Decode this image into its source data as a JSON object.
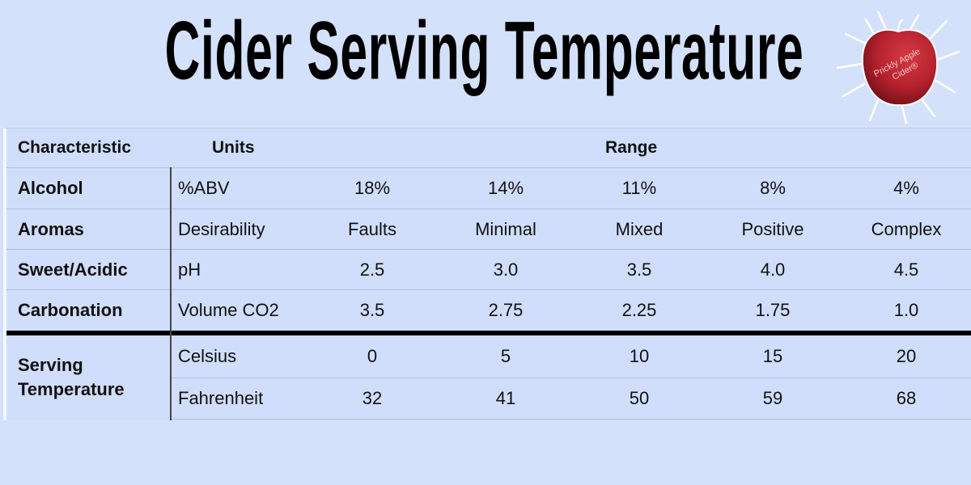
{
  "title": "Cider Serving Temperature",
  "logo": {
    "text_line1": "Prickly Apple",
    "text_line2": "Cider®",
    "color": "#b3202c"
  },
  "table": {
    "headers": {
      "characteristic": "Characteristic",
      "units": "Units",
      "range": "Range"
    },
    "rows": [
      {
        "characteristic": "Alcohol",
        "units": "%ABV",
        "values": [
          "18%",
          "14%",
          "11%",
          "8%",
          "4%"
        ]
      },
      {
        "characteristic": "Aromas",
        "units": "Desirability",
        "values": [
          "Faults",
          "Minimal",
          "Mixed",
          "Positive",
          "Complex"
        ]
      },
      {
        "characteristic": "Sweet/Acidic",
        "units": "pH",
        "values": [
          "2.5",
          "3.0",
          "3.5",
          "4.0",
          "4.5"
        ]
      },
      {
        "characteristic": "Carbonation",
        "units": "Volume CO2",
        "values": [
          "3.5",
          "2.75",
          "2.25",
          "1.75",
          "1.0"
        ]
      }
    ],
    "serving": {
      "label_line1": "Serving",
      "label_line2": "Temperature",
      "rows": [
        {
          "units": "Celsius",
          "values": [
            "0",
            "5",
            "10",
            "15",
            "20"
          ]
        },
        {
          "units": "Fahrenheit",
          "values": [
            "32",
            "41",
            "50",
            "59",
            "68"
          ]
        }
      ]
    }
  }
}
